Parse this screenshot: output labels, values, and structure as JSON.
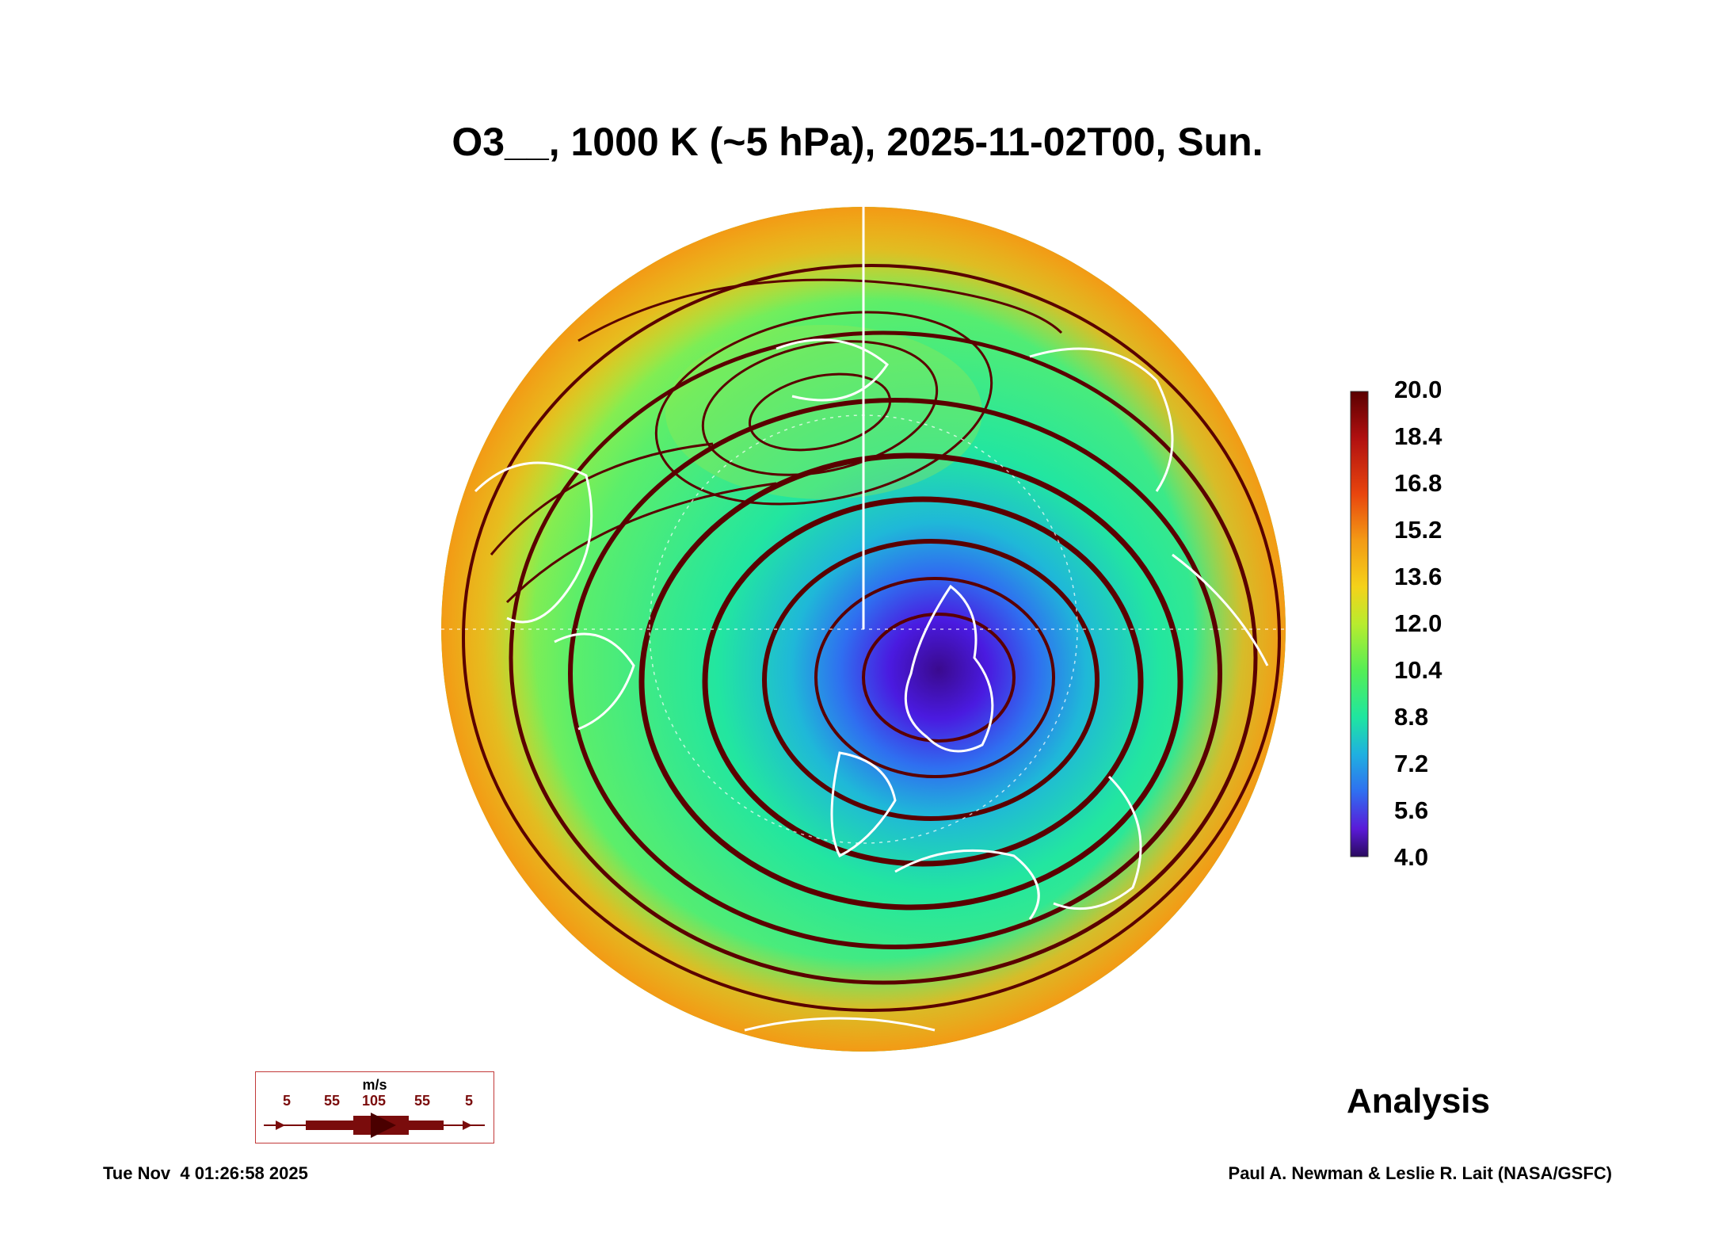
{
  "title": "O3__, 1000 K (~5 hPa), 2025-11-02T00, Sun.",
  "colorbar": {
    "labels": [
      "20.0",
      "18.4",
      "16.8",
      "15.2",
      "13.6",
      "12.0",
      "10.4",
      "8.8",
      "7.2",
      "5.6",
      "4.0"
    ],
    "colors": [
      "#3a0a5e",
      "#5a1ad8",
      "#2f6ff0",
      "#1fb0e0",
      "#1fe6a0",
      "#55ee55",
      "#b8ec2e",
      "#f4d21a",
      "#f39a15",
      "#e8450e",
      "#b01010",
      "#5a0000"
    ]
  },
  "wind_legend": {
    "unit": "m/s",
    "values": [
      "5",
      "55",
      "105",
      "55",
      "5"
    ],
    "color": "#7a0c0c"
  },
  "analysis_label": "Analysis",
  "timestamp": "Tue Nov  4 01:26:58 2025",
  "credit": "Paul A. Newman & Leslie R. Lait (NASA/GSFC)",
  "map": {
    "projection": "north-polar-stereographic",
    "field": "ozone mixing ratio",
    "streamline_color": "#5a0000",
    "coastline_color": "#ffffff"
  }
}
